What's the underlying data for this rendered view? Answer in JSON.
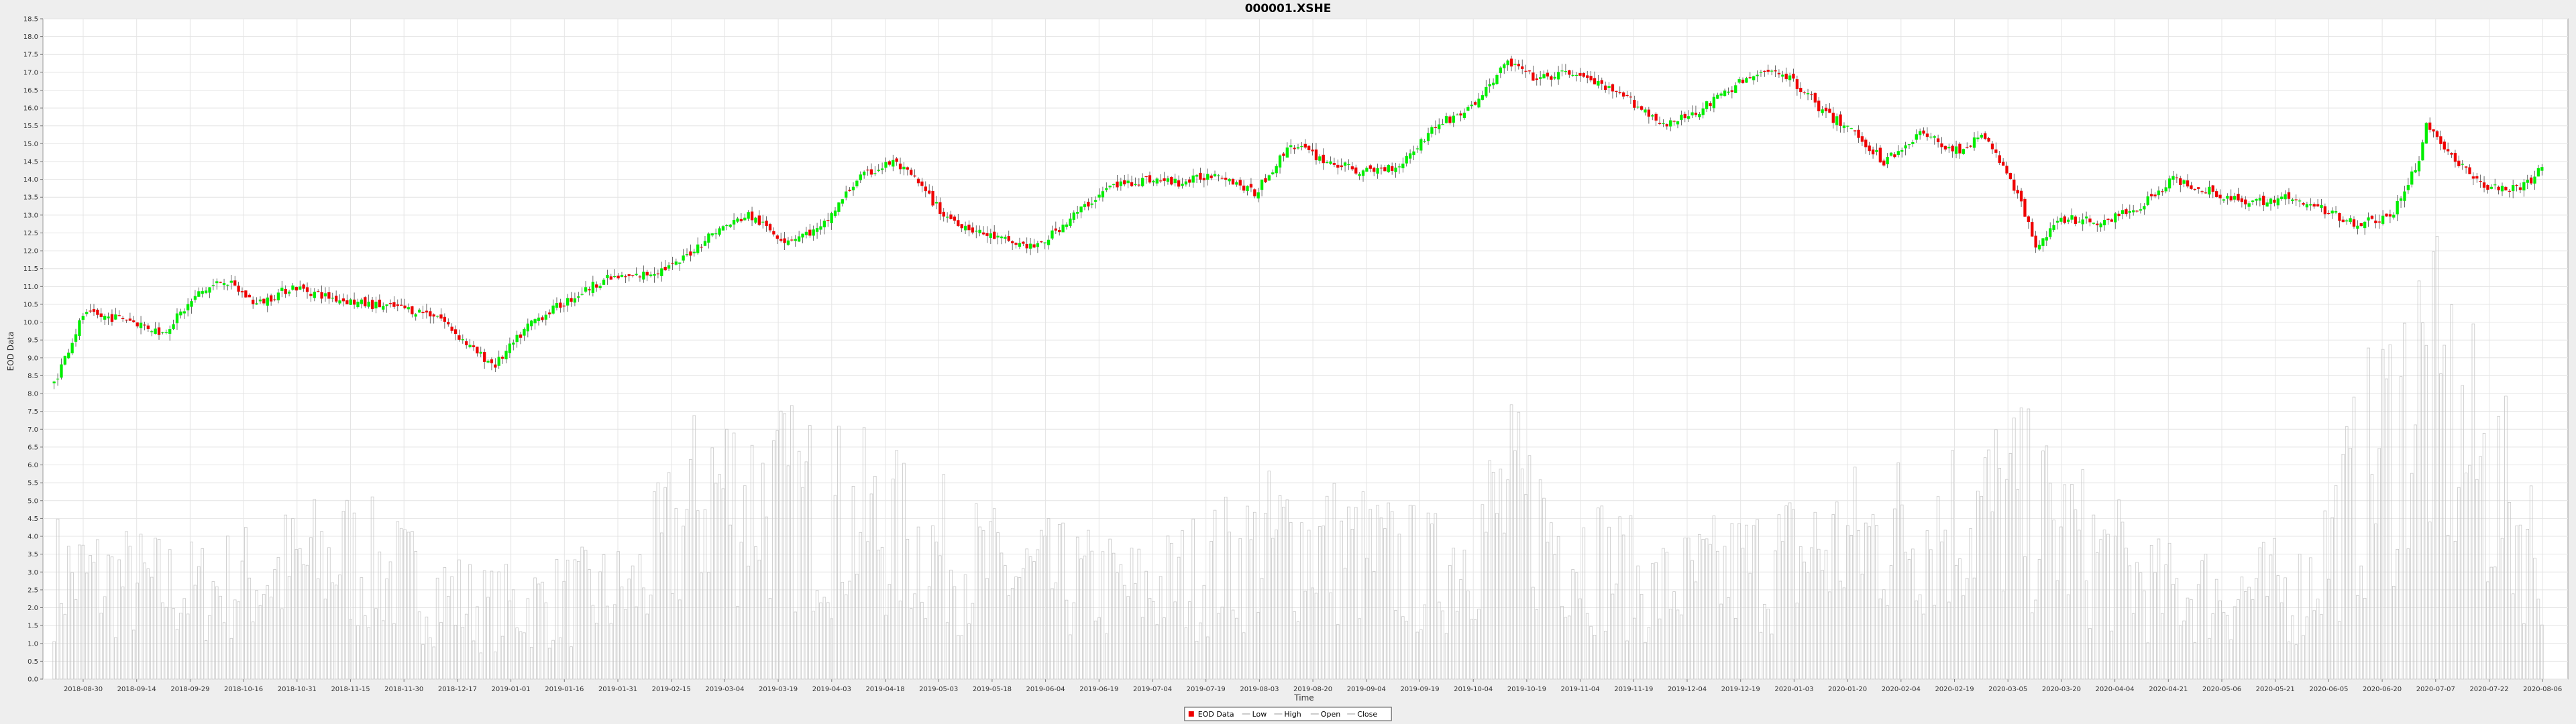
{
  "chart_data": {
    "type": "candlestick",
    "title": "000001.XSHE",
    "xlabel": "Time",
    "ylabel": "EOD Data",
    "ylim": [
      0.0,
      18.5
    ],
    "ytick_step": 0.5,
    "grid": true,
    "legend_position": "bottom-center",
    "colors": {
      "up": "#00ee00",
      "down": "#ee0000",
      "volume": "#c8c8c8",
      "grid": "#e4e4e4",
      "plot_bg": "#ffffff",
      "page_bg": "#eeeeee"
    },
    "x_tick_labels": [
      "2018-08-30",
      "2018-09-14",
      "2018-09-29",
      "2018-10-16",
      "2018-10-31",
      "2018-11-15",
      "2018-11-30",
      "2018-12-17",
      "2019-01-01",
      "2019-01-16",
      "2019-01-31",
      "2019-02-15",
      "2019-03-04",
      "2019-03-19",
      "2019-04-03",
      "2019-04-18",
      "2019-05-03",
      "2019-05-18",
      "2019-06-04",
      "2019-06-19",
      "2019-07-04",
      "2019-07-19",
      "2019-08-03",
      "2019-08-20",
      "2019-09-04",
      "2019-09-19",
      "2019-10-04",
      "2019-10-19",
      "2019-11-04",
      "2019-11-19",
      "2019-12-04",
      "2019-12-19",
      "2020-01-03",
      "2020-01-20",
      "2020-02-04",
      "2020-02-19",
      "2020-03-05",
      "2020-03-20",
      "2020-04-04",
      "2020-04-21",
      "2020-05-06",
      "2020-05-21",
      "2020-06-05",
      "2020-06-20",
      "2020-07-07",
      "2020-07-22",
      "2020-08-06"
    ],
    "legend": [
      {
        "label": "EOD Data",
        "swatch": "square",
        "color": "#ee0000"
      },
      {
        "label": "Low",
        "swatch": "line",
        "color": "#999999"
      },
      {
        "label": "High",
        "swatch": "line",
        "color": "#999999"
      },
      {
        "label": "Open",
        "swatch": "line",
        "color": "#999999"
      },
      {
        "label": "Close",
        "swatch": "line",
        "color": "#999999"
      }
    ],
    "close_anchors": [
      [
        0,
        8.3
      ],
      [
        8,
        10.2
      ],
      [
        20,
        10.1
      ],
      [
        30,
        9.7
      ],
      [
        40,
        10.8
      ],
      [
        47,
        11.2
      ],
      [
        56,
        10.5
      ],
      [
        66,
        11.0
      ],
      [
        76,
        10.7
      ],
      [
        86,
        10.5
      ],
      [
        96,
        10.4
      ],
      [
        106,
        10.2
      ],
      [
        116,
        9.2
      ],
      [
        122,
        8.8
      ],
      [
        132,
        10.0
      ],
      [
        142,
        10.6
      ],
      [
        152,
        11.2
      ],
      [
        162,
        11.3
      ],
      [
        172,
        11.6
      ],
      [
        182,
        12.5
      ],
      [
        192,
        13.0
      ],
      [
        202,
        12.3
      ],
      [
        212,
        12.6
      ],
      [
        222,
        14.0
      ],
      [
        232,
        14.5
      ],
      [
        238,
        14.0
      ],
      [
        246,
        13.0
      ],
      [
        256,
        12.5
      ],
      [
        266,
        12.2
      ],
      [
        272,
        12.1
      ],
      [
        282,
        13.0
      ],
      [
        292,
        13.8
      ],
      [
        302,
        14.0
      ],
      [
        312,
        13.9
      ],
      [
        322,
        14.2
      ],
      [
        332,
        13.6
      ],
      [
        342,
        15.0
      ],
      [
        352,
        14.5
      ],
      [
        362,
        14.2
      ],
      [
        372,
        14.4
      ],
      [
        382,
        15.5
      ],
      [
        392,
        16.0
      ],
      [
        402,
        17.3
      ],
      [
        410,
        16.8
      ],
      [
        420,
        17.0
      ],
      [
        426,
        16.7
      ],
      [
        436,
        16.2
      ],
      [
        446,
        15.5
      ],
      [
        456,
        16.0
      ],
      [
        466,
        16.7
      ],
      [
        476,
        17.1
      ],
      [
        484,
        16.5
      ],
      [
        490,
        15.8
      ],
      [
        496,
        15.5
      ],
      [
        506,
        14.5
      ],
      [
        516,
        15.3
      ],
      [
        526,
        14.8
      ],
      [
        534,
        15.2
      ],
      [
        542,
        13.8
      ],
      [
        548,
        12.2
      ],
      [
        556,
        12.9
      ],
      [
        566,
        12.8
      ],
      [
        576,
        13.2
      ],
      [
        586,
        14.0
      ],
      [
        596,
        13.7
      ],
      [
        606,
        13.3
      ],
      [
        616,
        13.5
      ],
      [
        626,
        13.2
      ],
      [
        636,
        12.8
      ],
      [
        646,
        12.9
      ],
      [
        654,
        14.5
      ],
      [
        656,
        15.6
      ],
      [
        664,
        14.5
      ],
      [
        672,
        13.8
      ],
      [
        682,
        13.7
      ],
      [
        688,
        14.3
      ]
    ],
    "volume_anchors": [
      [
        0,
        3.0
      ],
      [
        40,
        2.5
      ],
      [
        80,
        3.5
      ],
      [
        120,
        2.0
      ],
      [
        160,
        2.5
      ],
      [
        182,
        5.5
      ],
      [
        222,
        4.5
      ],
      [
        262,
        3.0
      ],
      [
        302,
        2.5
      ],
      [
        342,
        4.0
      ],
      [
        382,
        3.0
      ],
      [
        402,
        5.0
      ],
      [
        442,
        2.5
      ],
      [
        482,
        3.5
      ],
      [
        542,
        5.0
      ],
      [
        582,
        2.5
      ],
      [
        622,
        2.5
      ],
      [
        654,
        8.5
      ],
      [
        688,
        3.5
      ]
    ]
  }
}
